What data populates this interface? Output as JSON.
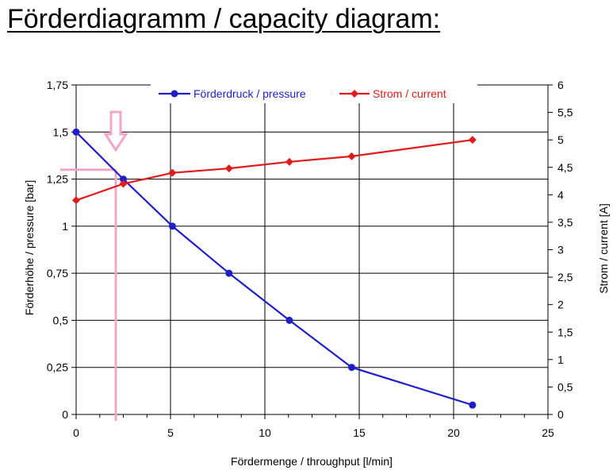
{
  "title": "Förderdiagramm / capacity diagram:",
  "colors": {
    "pressure": "#1f1fc8",
    "current": "#e11b1b",
    "marker_pressure": "#1f1fc8",
    "marker_current": "#e11b1b",
    "annotation": "#f4a6c6",
    "grid": "#000000"
  },
  "chart_data": {
    "type": "line",
    "title": "Förderdiagramm / capacity diagram:",
    "xlabel": "Fördermenge / throughput [l/min]",
    "ylabel": "Förderhöhe / pressure [bar]",
    "y2label": "Strom / current [A]",
    "xlim": [
      0,
      25
    ],
    "ylim": [
      0,
      1.75
    ],
    "y2lim": [
      0,
      6
    ],
    "x_ticks": [
      "0",
      "5",
      "10",
      "15",
      "20",
      "25"
    ],
    "x_tick_values": [
      0,
      5,
      10,
      15,
      20,
      25
    ],
    "y_ticks": [
      "0",
      "0,25",
      "0,5",
      "0,75",
      "1",
      "1,25",
      "1,5",
      "1,75"
    ],
    "y_tick_values": [
      0,
      0.25,
      0.5,
      0.75,
      1,
      1.25,
      1.5,
      1.75
    ],
    "y2_ticks": [
      "0",
      "0,5",
      "1",
      "1,5",
      "2",
      "2,5",
      "3",
      "3,5",
      "4",
      "4,5",
      "5",
      "5,5",
      "6"
    ],
    "y2_tick_values": [
      0,
      0.5,
      1,
      1.5,
      2,
      2.5,
      3,
      3.5,
      4,
      4.5,
      5,
      5.5,
      6
    ],
    "grid": true,
    "legend_position": "top",
    "series": [
      {
        "name": "Förderdruck / pressure",
        "axis": "left",
        "marker": "circle",
        "x": [
          0,
          2.5,
          5.1,
          8.1,
          11.3,
          14.6,
          21
        ],
        "y": [
          1.5,
          1.25,
          1.0,
          0.75,
          0.5,
          0.25,
          0.05
        ]
      },
      {
        "name": "Strom / current",
        "axis": "right",
        "marker": "diamond",
        "x": [
          0,
          2.5,
          5.1,
          8.1,
          11.3,
          14.6,
          21
        ],
        "y": [
          3.9,
          4.2,
          4.4,
          4.48,
          4.6,
          4.7,
          5.0
        ]
      }
    ],
    "annotation": {
      "operating_point_x": 2.1,
      "operating_point_y": 1.3
    }
  }
}
